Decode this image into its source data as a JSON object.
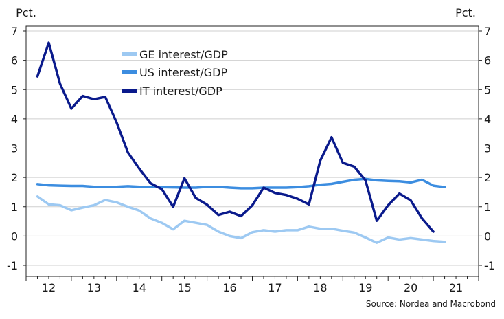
{
  "chart_data": {
    "type": "line",
    "title": "",
    "unit_left": "Pct.",
    "unit_right": "Pct.",
    "source": "Source: Nordea and Macrobond",
    "ylim": [
      -1,
      7
    ],
    "y_ticks": [
      -1,
      0,
      1,
      2,
      3,
      4,
      5,
      6,
      7
    ],
    "xlim": [
      2011.5,
      2021.5
    ],
    "x_tick_labels": [
      "12",
      "13",
      "14",
      "15",
      "16",
      "17",
      "18",
      "19",
      "20",
      "21"
    ],
    "grid": true,
    "legend_position": "top-left",
    "series": [
      {
        "name": "GE interest/GDP",
        "color": "#9dc9f2",
        "x": [
          2011.75,
          2012.0,
          2012.25,
          2012.5,
          2012.75,
          2013.0,
          2013.25,
          2013.5,
          2013.75,
          2014.0,
          2014.25,
          2014.5,
          2014.75,
          2015.0,
          2015.25,
          2015.5,
          2015.75,
          2016.0,
          2016.25,
          2016.5,
          2016.75,
          2017.0,
          2017.25,
          2017.5,
          2017.75,
          2018.0,
          2018.25,
          2018.5,
          2018.75,
          2019.0,
          2019.25,
          2019.5,
          2019.75,
          2020.0,
          2020.25,
          2020.5,
          2020.75
        ],
        "y": [
          1.35,
          1.08,
          1.05,
          0.88,
          0.97,
          1.05,
          1.23,
          1.15,
          1.0,
          0.87,
          0.6,
          0.45,
          0.23,
          0.52,
          0.45,
          0.38,
          0.15,
          0.0,
          -0.07,
          0.13,
          0.2,
          0.15,
          0.2,
          0.2,
          0.32,
          0.25,
          0.25,
          0.18,
          0.12,
          -0.05,
          -0.23,
          -0.05,
          -0.12,
          -0.07,
          -0.12,
          -0.17,
          -0.2
        ]
      },
      {
        "name": "US interest/GDP",
        "color": "#3c8de0",
        "x": [
          2011.75,
          2012.0,
          2012.25,
          2012.5,
          2012.75,
          2013.0,
          2013.25,
          2013.5,
          2013.75,
          2014.0,
          2014.25,
          2014.5,
          2014.75,
          2015.0,
          2015.25,
          2015.5,
          2015.75,
          2016.0,
          2016.25,
          2016.5,
          2016.75,
          2017.0,
          2017.25,
          2017.5,
          2017.75,
          2018.0,
          2018.25,
          2018.5,
          2018.75,
          2019.0,
          2019.25,
          2019.5,
          2019.75,
          2020.0,
          2020.25,
          2020.5,
          2020.75
        ],
        "y": [
          1.77,
          1.73,
          1.72,
          1.71,
          1.71,
          1.68,
          1.68,
          1.68,
          1.7,
          1.68,
          1.68,
          1.67,
          1.66,
          1.65,
          1.65,
          1.68,
          1.68,
          1.65,
          1.63,
          1.63,
          1.65,
          1.65,
          1.65,
          1.67,
          1.7,
          1.75,
          1.78,
          1.85,
          1.92,
          1.95,
          1.9,
          1.88,
          1.87,
          1.83,
          1.92,
          1.72,
          1.67
        ]
      },
      {
        "name": "IT interest/GDP",
        "color": "#0a1a8c",
        "x": [
          2011.75,
          2012.0,
          2012.25,
          2012.5,
          2012.75,
          2013.0,
          2013.25,
          2013.5,
          2013.75,
          2014.0,
          2014.25,
          2014.5,
          2014.75,
          2015.0,
          2015.25,
          2015.5,
          2015.75,
          2016.0,
          2016.25,
          2016.5,
          2016.75,
          2017.0,
          2017.25,
          2017.5,
          2017.75,
          2018.0,
          2018.25,
          2018.5,
          2018.75,
          2019.0,
          2019.25,
          2019.5,
          2019.75,
          2020.0,
          2020.25,
          2020.5,
          2020.75
        ],
        "y": [
          5.45,
          6.6,
          5.2,
          4.35,
          4.78,
          4.67,
          4.75,
          3.88,
          2.85,
          2.3,
          1.8,
          1.6,
          1.0,
          1.97,
          1.3,
          1.07,
          0.72,
          0.83,
          0.68,
          1.05,
          1.65,
          1.47,
          1.4,
          1.27,
          1.08,
          2.57,
          3.37,
          2.5,
          2.37,
          1.9,
          0.52,
          1.05,
          1.45,
          1.22,
          0.6,
          0.15,
          null
        ]
      }
    ]
  }
}
